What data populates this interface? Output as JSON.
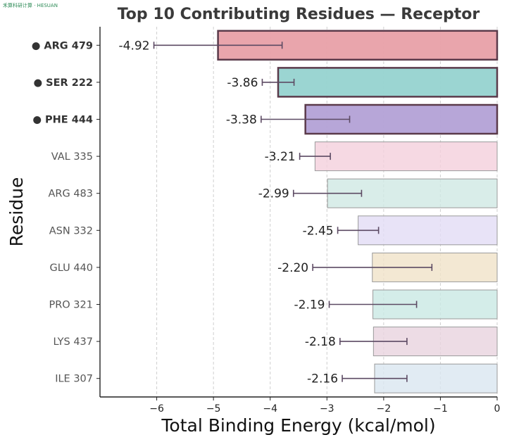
{
  "watermark": "禾算科研计算 · HESUAN",
  "chart_data": {
    "type": "bar",
    "orientation": "horizontal",
    "title": "Top 10 Contributing Residues — Receptor",
    "xlabel": "Total Binding Energy (kcal/mol)",
    "ylabel": "Residue",
    "xlim": [
      -7,
      0
    ],
    "xticks": [
      -6,
      -5,
      -4,
      -3,
      -2,
      -1,
      0
    ],
    "xtick_labels": [
      "−6",
      "−5",
      "−4",
      "−3",
      "−2",
      "−1",
      "0"
    ],
    "grid": "vertical dashed",
    "categories": [
      "ARG 479",
      "SER 222",
      "PHE 444",
      "VAL 335",
      "ARG 483",
      "ASN 332",
      "GLU 440",
      "PRO 321",
      "LYS 437",
      "ILE 307"
    ],
    "values": [
      -4.92,
      -3.86,
      -3.38,
      -3.21,
      -2.99,
      -2.45,
      -2.2,
      -2.19,
      -2.18,
      -2.16
    ],
    "value_labels": [
      "-4.92",
      "-3.86",
      "-3.38",
      "-3.21",
      "-2.99",
      "-2.45",
      "-2.20",
      "-2.19",
      "-2.18",
      "-2.16"
    ],
    "error": [
      1.13,
      0.28,
      0.78,
      0.27,
      0.6,
      0.36,
      1.05,
      0.77,
      0.59,
      0.57
    ],
    "highlighted": [
      true,
      true,
      true,
      false,
      false,
      false,
      false,
      false,
      false,
      false
    ],
    "highlight_marker": "●",
    "colors": [
      "#e8a0a8",
      "#96d3d0",
      "#b3a1d6",
      "#f4cfdc",
      "#cfe9e4",
      "#e2dcf5",
      "#f0e2c8",
      "#c9e8e4",
      "#e8d3df",
      "#d9e6f0"
    ],
    "highlight_border": "#5a3a4a",
    "errorbar_color": "#5c4a63"
  }
}
